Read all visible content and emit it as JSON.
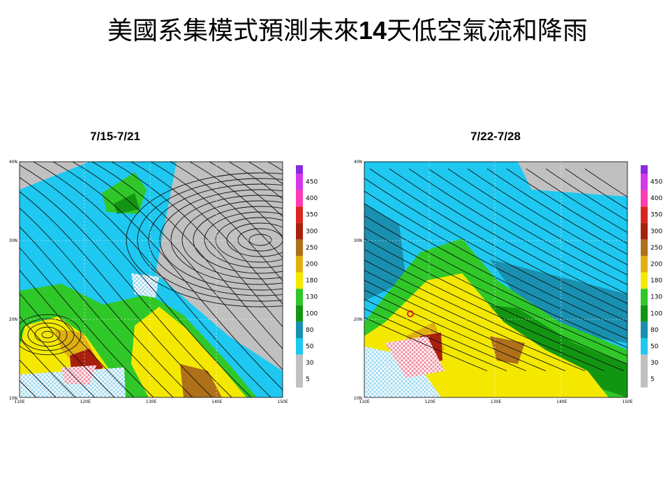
{
  "title": {
    "before": "美國系集模式預測未來",
    "number": "14",
    "after": "天低空氣流和降雨"
  },
  "maps": [
    {
      "label": "7/15-7/21"
    },
    {
      "label": "7/22-7/28"
    }
  ],
  "lat_labels": [
    "40N",
    "30N",
    "20N",
    "10N"
  ],
  "lon_labels": [
    "110E",
    "120E",
    "130E",
    "140E",
    "150E"
  ],
  "colorbar": {
    "labels": [
      450,
      400,
      350,
      300,
      250,
      200,
      180,
      130,
      100,
      80,
      50,
      30,
      5
    ],
    "colors": [
      "#d438e8",
      "#ff3cb4",
      "#d8261e",
      "#a8200e",
      "#b0701a",
      "#e0b010",
      "#f4e800",
      "#30c828",
      "#129612",
      "#1a90b0",
      "#1ec8f0",
      "#c0c0c0",
      "#c0c0c0"
    ]
  }
}
